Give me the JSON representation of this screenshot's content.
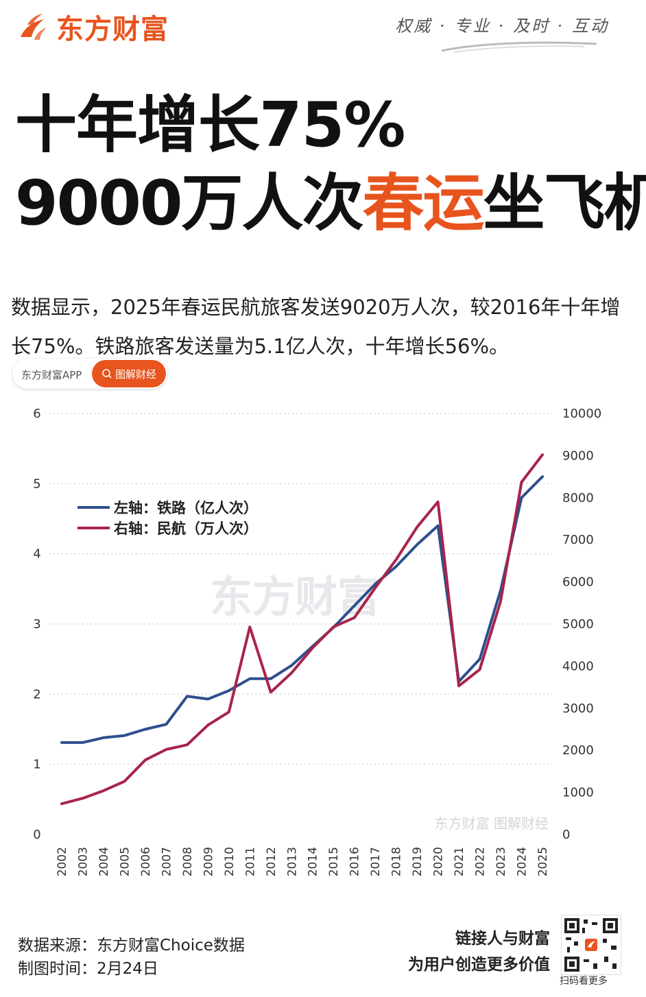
{
  "brand": {
    "name": "东方财富",
    "slogan": "权威 · 专业 · 及时 · 互动",
    "color": "#e8541e",
    "icon": "flame-logo-icon"
  },
  "headline": {
    "line1": "十年增长75%",
    "line2_pre": "9000万人次",
    "line2_highlight": "春运",
    "line2_post": "坐飞机"
  },
  "summary": "数据显示，2025年春运民航旅客发送9020万人次，较2016年十年增长75%。铁路旅客发送量为5.1亿人次，十年增长56%。",
  "tag": {
    "app": "东方财富APP",
    "button": "图解财经",
    "icon": "search-icon"
  },
  "watermark": {
    "center": "东方财富",
    "bottom": "东方财富 图解财经"
  },
  "chart_data": {
    "type": "line",
    "x": [
      "2002",
      "2003",
      "2004",
      "2005",
      "2006",
      "2007",
      "2008",
      "2009",
      "2010",
      "2011",
      "2012",
      "2013",
      "2014",
      "2015",
      "2016",
      "2017",
      "2018",
      "2019",
      "2020",
      "2021",
      "2022",
      "2023",
      "2024",
      "2025"
    ],
    "series": [
      {
        "name": "左轴：铁路（亿人次）",
        "axis": "left",
        "color": "#2e4f8e",
        "values": [
          1.31,
          1.31,
          1.38,
          1.41,
          1.5,
          1.57,
          1.97,
          1.93,
          2.05,
          2.22,
          2.22,
          2.41,
          2.68,
          2.95,
          3.26,
          3.57,
          3.82,
          4.13,
          4.4,
          2.18,
          2.5,
          3.48,
          4.8,
          5.1
        ]
      },
      {
        "name": "右轴：民航（万人次）",
        "axis": "right",
        "color": "#a8244a",
        "values": [
          730,
          860,
          1040,
          1260,
          1770,
          2020,
          2130,
          2600,
          2910,
          4930,
          3380,
          3840,
          4430,
          4930,
          5150,
          5860,
          6530,
          7300,
          7900,
          3530,
          3920,
          5540,
          8370,
          9020
        ]
      }
    ],
    "y_left": {
      "ylim": [
        0,
        6
      ],
      "ticks": [
        0,
        1,
        2,
        3,
        4,
        5,
        6
      ]
    },
    "y_right": {
      "ylim": [
        0,
        10000
      ],
      "ticks": [
        0,
        1000,
        2000,
        3000,
        4000,
        5000,
        6000,
        7000,
        8000,
        9000,
        10000
      ]
    },
    "grid": true,
    "legend_position": "top-left"
  },
  "footer": {
    "source": "数据来源：东方财富Choice数据",
    "date": "制图时间：2月24日",
    "tagline1": "链接人与财富",
    "tagline2": "为用户创造更多价值",
    "qr_label": "扫码看更多"
  }
}
